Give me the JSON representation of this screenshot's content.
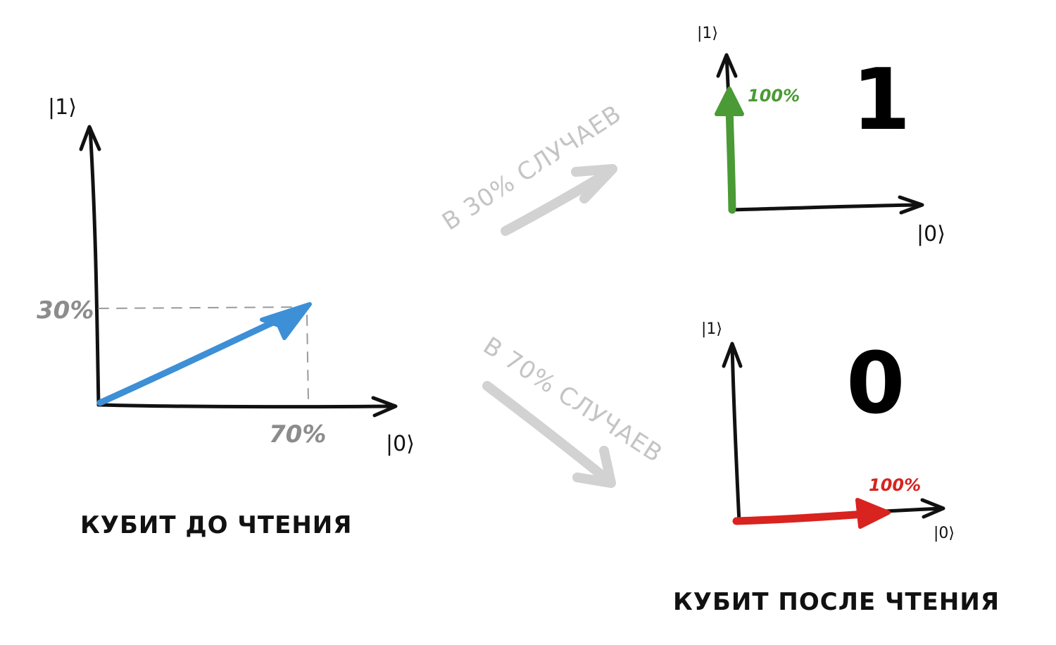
{
  "before": {
    "axis_y_label": "|1⟩",
    "axis_x_label": "|0⟩",
    "y_share_label": "30%",
    "x_share_label": "70%",
    "caption": "КУБИТ ДО ЧТЕНИЯ",
    "vector_color": "#3d8fd6"
  },
  "transitions": {
    "upper": {
      "label": "В 30% СЛУЧАЕВ",
      "probability": 0.3
    },
    "lower": {
      "label": "В 70% СЛУЧАЕВ",
      "probability": 0.7
    },
    "arrow_color": "#d2d2d2"
  },
  "after_one": {
    "axis_y_label": "|1⟩",
    "axis_x_label": "|0⟩",
    "share_label": "100%",
    "result": "1",
    "vector_color": "#4a9a35"
  },
  "after_zero": {
    "axis_y_label": "|1⟩",
    "axis_x_label": "|0⟩",
    "share_label": "100%",
    "result": "0",
    "vector_color": "#d8231f"
  },
  "after_caption": "КУБИТ ПОСЛЕ ЧТЕНИЯ"
}
